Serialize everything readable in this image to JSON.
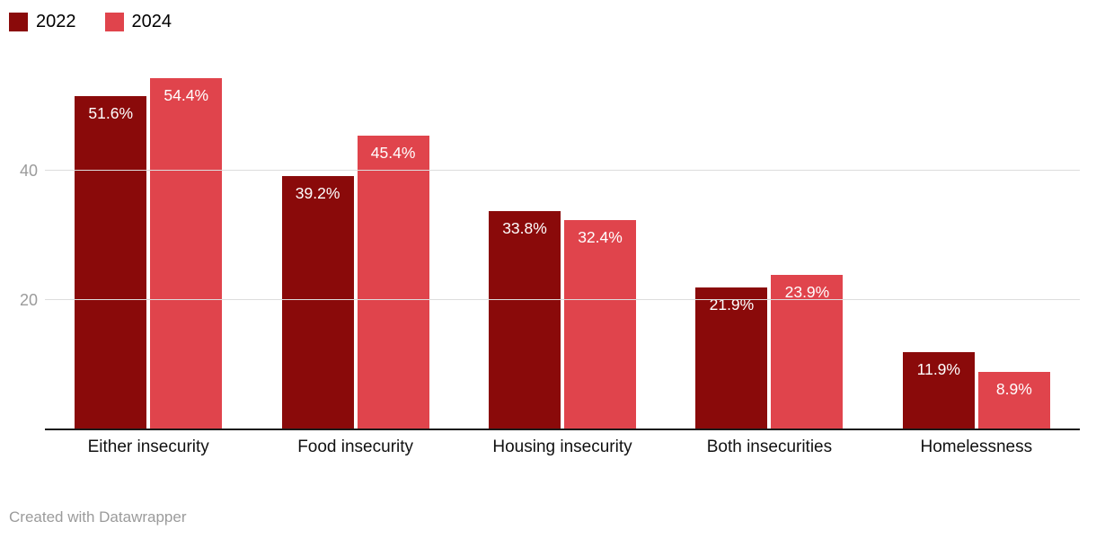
{
  "chart_data": {
    "type": "bar",
    "categories": [
      "Either insecurity",
      "Food insecurity",
      "Housing insecurity",
      "Both insecurities",
      "Homelessness"
    ],
    "series": [
      {
        "name": "2022",
        "color": "#8a0a0a",
        "values": [
          51.6,
          39.2,
          33.8,
          21.9,
          11.9
        ]
      },
      {
        "name": "2024",
        "color": "#e0444c",
        "values": [
          54.4,
          45.4,
          32.4,
          23.9,
          8.9
        ]
      }
    ],
    "value_suffix": "%",
    "yticks": [
      20,
      40
    ],
    "ylim": [
      0,
      57
    ],
    "grid": true,
    "legend_position": "top-left",
    "title": "",
    "xlabel": "",
    "ylabel": ""
  },
  "footer": {
    "credit": "Created with Datawrapper"
  }
}
